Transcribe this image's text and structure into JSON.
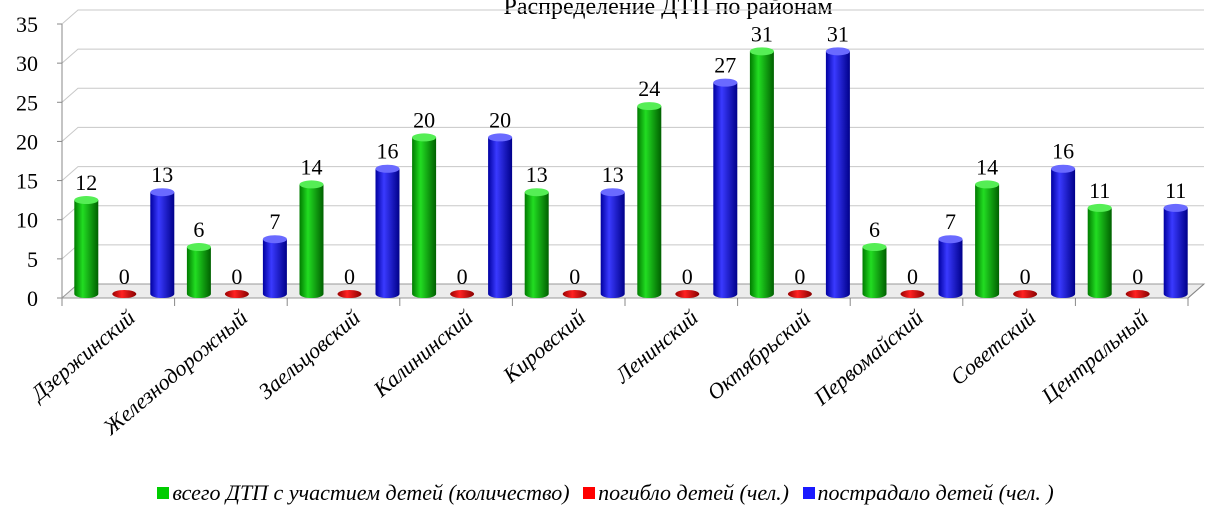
{
  "chart_data": {
    "type": "bar",
    "title": "Распределение ДТП по районам",
    "categories": [
      "Дзержинский",
      "Железнодорожный",
      "Заельцовский",
      "Калининский",
      "Кировский",
      "Ленинский",
      "Октябрьский",
      "Первомайский",
      "Советский",
      "Центральный"
    ],
    "series": [
      {
        "name": "всего ДТП с участием детей (количество)",
        "values": [
          12,
          6,
          14,
          20,
          13,
          24,
          31,
          6,
          14,
          11
        ],
        "color": "#00cc00"
      },
      {
        "name": "погибло детей (чел.)",
        "values": [
          0,
          0,
          0,
          0,
          0,
          0,
          0,
          0,
          0,
          0
        ],
        "color": "#ff0000"
      },
      {
        "name": "пострадало детей (чел. )",
        "values": [
          13,
          7,
          16,
          20,
          13,
          27,
          31,
          7,
          16,
          11
        ],
        "color": "#1a1aff"
      }
    ],
    "y_ticks": [
      "0",
      "5",
      "10",
      "15",
      "20",
      "25",
      "30",
      "35"
    ],
    "ylim": [
      0,
      35
    ],
    "grid": true,
    "style": "3d-cylinder",
    "legend_position": "bottom",
    "xlabel": "",
    "ylabel": ""
  }
}
